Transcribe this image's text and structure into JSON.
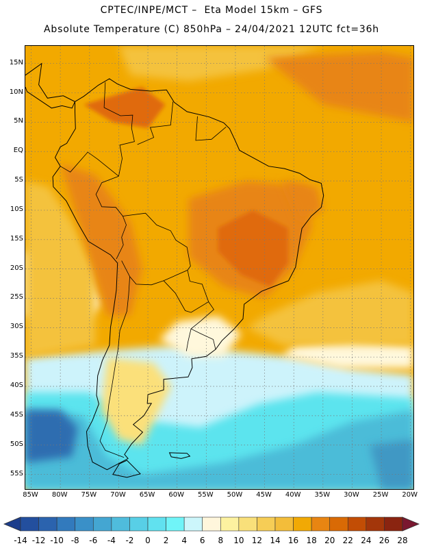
{
  "header": {
    "title_line1": "CPTEC/INPE/MCT –  Eta Model 15km – GFS",
    "title_line2": "Absolute Temperature (C) 850hPa – 24/04/2021 12UTC fct=36h"
  },
  "map": {
    "lat_labels": [
      "15N",
      "10N",
      "5N",
      "EQ",
      "5S",
      "10S",
      "15S",
      "20S",
      "25S",
      "30S",
      "35S",
      "40S",
      "45S",
      "50S",
      "55S"
    ],
    "lon_labels": [
      "85W",
      "80W",
      "75W",
      "70W",
      "65W",
      "60W",
      "55W",
      "50W",
      "45W",
      "40W",
      "35W",
      "30W",
      "25W",
      "20W"
    ],
    "extent": {
      "lon_min": -86,
      "lon_max": -19.5,
      "lat_min": -57.5,
      "lat_max": 18
    },
    "colors": {
      "ocean_warm": "#f2a900",
      "land_hot": "#e06a0a",
      "land_warm": "#e88512",
      "mild": "#f4c23c",
      "yellow": "#fbe07a",
      "pale": "#fff8dc",
      "cold_light": "#cdf3fb",
      "cyan": "#5ce4ee",
      "blue_mid": "#4cbcd8",
      "blue_dark": "#2f6db0"
    }
  },
  "colorbar": {
    "labels": [
      "-14",
      "-12",
      "-10",
      "-8",
      "-6",
      "-4",
      "-2",
      "0",
      "2",
      "4",
      "6",
      "8",
      "10",
      "12",
      "14",
      "16",
      "18",
      "20",
      "22",
      "24",
      "26",
      "28"
    ],
    "colors": [
      "#1c3d8c",
      "#234f9e",
      "#2b63ae",
      "#327abd",
      "#3a90c8",
      "#44a6d2",
      "#4fbcdc",
      "#58cfe6",
      "#61e1ef",
      "#70f4f8",
      "#ccf6fb",
      "#fff6dc",
      "#fdf2a0",
      "#f9e07a",
      "#f6cd56",
      "#f3bd3a",
      "#f1a905",
      "#e88512",
      "#d96a05",
      "#c24d05",
      "#a3360a",
      "#8a2410",
      "#7a1830"
    ]
  }
}
